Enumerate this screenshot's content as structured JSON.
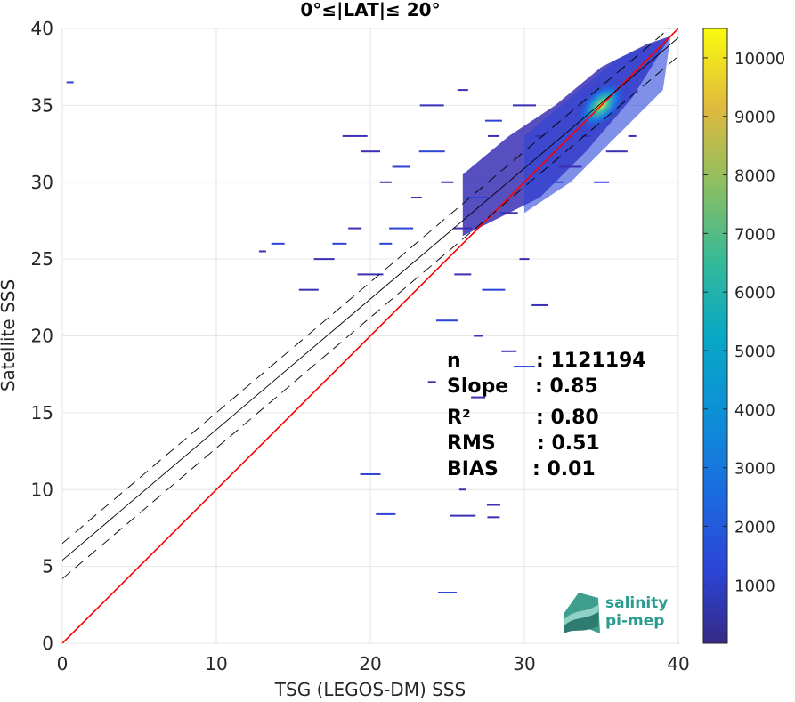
{
  "chart_data": {
    "type": "heatmap",
    "title": "0°≤|LAT|≤ 20°",
    "xlabel": "TSG (LEGOS-DM) SSS",
    "ylabel": "Satellite SSS",
    "xlim": [
      0,
      40
    ],
    "ylim": [
      0,
      40
    ],
    "xticks": [
      "0",
      "10",
      "20",
      "30",
      "40"
    ],
    "yticks": [
      "0",
      "5",
      "10",
      "15",
      "20",
      "25",
      "30",
      "35",
      "40"
    ],
    "grid": true,
    "colorbar": {
      "range": [
        1,
        10500
      ],
      "ticks": [
        "1000",
        "2000",
        "3000",
        "4000",
        "5000",
        "6000",
        "7000",
        "8000",
        "9000",
        "10000"
      ],
      "colormap": "parula"
    },
    "lines": [
      {
        "kind": "identity",
        "color": "#ff0000",
        "slope": 1,
        "intercept": 0
      },
      {
        "kind": "regression",
        "color": "#000000",
        "slope": 0.85,
        "intercept": 5.4
      },
      {
        "kind": "regression-upper",
        "color": "#000000",
        "dash": true,
        "slope": 0.85,
        "intercept": 6.5
      },
      {
        "kind": "regression-lower",
        "color": "#000000",
        "dash": true,
        "slope": 0.85,
        "intercept": 4.2
      }
    ],
    "density_core": {
      "x": 35,
      "y": 35
    },
    "scatter_hint": [
      [
        0.5,
        36.5
      ],
      [
        19,
        27
      ],
      [
        20,
        32
      ],
      [
        24,
        32
      ],
      [
        25,
        30
      ],
      [
        26,
        27
      ],
      [
        27,
        29
      ],
      [
        28,
        33
      ],
      [
        29,
        28
      ],
      [
        22,
        27
      ],
      [
        23,
        29
      ],
      [
        26,
        24
      ],
      [
        28,
        23
      ],
      [
        30,
        25
      ],
      [
        31,
        22
      ],
      [
        25,
        21
      ],
      [
        27,
        20
      ],
      [
        29,
        19
      ],
      [
        30,
        18
      ],
      [
        24,
        17
      ],
      [
        27,
        16
      ],
      [
        20,
        11
      ],
      [
        26,
        10
      ],
      [
        28,
        9
      ],
      [
        21,
        8.4
      ],
      [
        26,
        8.3
      ],
      [
        28,
        8.2
      ],
      [
        25,
        3.3
      ],
      [
        19,
        33
      ],
      [
        21,
        30
      ],
      [
        22,
        31
      ],
      [
        24,
        35
      ],
      [
        26,
        36
      ],
      [
        28,
        34
      ],
      [
        30,
        35
      ],
      [
        31,
        33
      ],
      [
        32,
        30
      ],
      [
        33,
        31
      ],
      [
        34,
        33
      ],
      [
        35,
        30
      ],
      [
        36,
        32
      ],
      [
        37,
        33
      ],
      [
        18,
        26
      ],
      [
        17,
        25
      ],
      [
        13,
        25.5
      ],
      [
        14,
        26
      ],
      [
        16,
        23
      ],
      [
        20,
        24
      ],
      [
        21,
        26
      ]
    ]
  },
  "stats": [
    {
      "label": "n",
      "value": ": 1121194"
    },
    {
      "label": "Slope",
      "value": ": 0.85"
    },
    {
      "label": "R²",
      "value": ": 0.80"
    },
    {
      "label": "RMS",
      "value": ": 0.51"
    },
    {
      "label": "BIAS",
      "value": ": 0.01"
    }
  ],
  "logo": {
    "line1": "salinity",
    "line2": "pi-mep",
    "color": "#2a9d8f"
  }
}
